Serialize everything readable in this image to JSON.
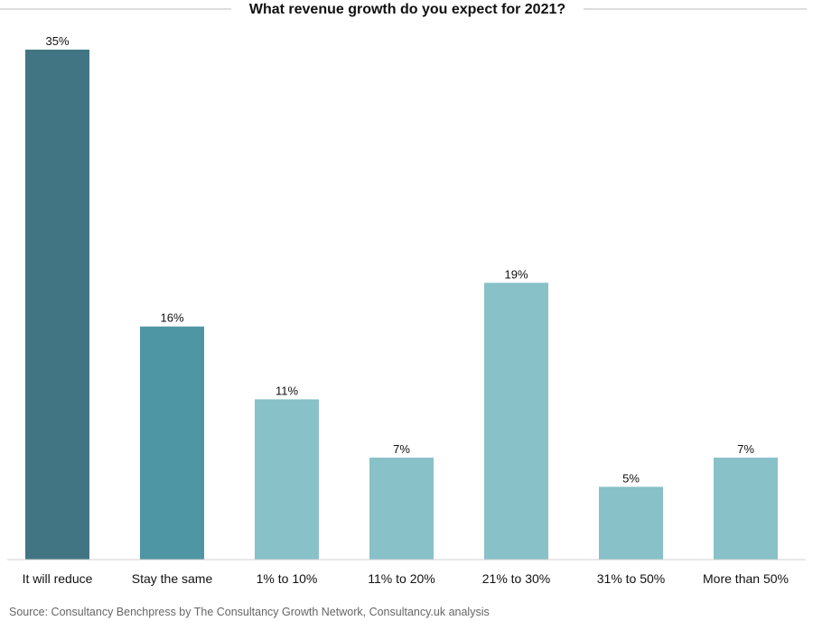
{
  "chart_data": {
    "type": "bar",
    "title": "What revenue growth do you expect for 2021?",
    "categories": [
      "It will reduce",
      "Stay the same",
      "1% to 10%",
      "11% to 20%",
      "21% to 30%",
      "31% to 50%",
      "More than 50%"
    ],
    "values": [
      35,
      16,
      11,
      7,
      19,
      5,
      7
    ],
    "value_labels": [
      "35%",
      "16%",
      "11%",
      "7%",
      "19%",
      "5%",
      "7%"
    ],
    "unit": "%",
    "ylim": [
      0,
      35
    ],
    "grid": false,
    "legend": "none",
    "bar_colors": [
      "#427584",
      "#4f96a5",
      "#88c1c8",
      "#88c1c8",
      "#88c1c8",
      "#88c1c8",
      "#88c1c8"
    ]
  },
  "source": "Source: Consultancy Benchpress by The Consultancy Growth Network, Consultancy.uk analysis",
  "colors": {
    "title_rule": "#bbbbbb",
    "baseline": "#d0d0d0",
    "text": "#111111",
    "source_text": "#666666"
  }
}
